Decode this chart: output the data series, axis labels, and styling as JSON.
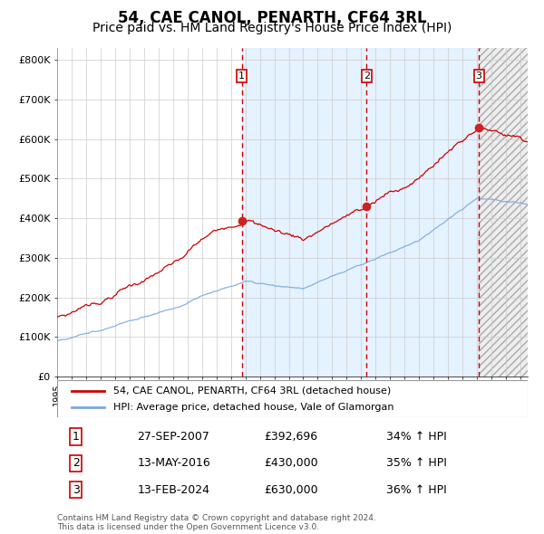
{
  "title": "54, CAE CANOL, PENARTH, CF64 3RL",
  "subtitle": "Price paid vs. HM Land Registry's House Price Index (HPI)",
  "title_fontsize": 12,
  "subtitle_fontsize": 10,
  "ylabel_ticks": [
    "£0",
    "£100K",
    "£200K",
    "£300K",
    "£400K",
    "£500K",
    "£600K",
    "£700K",
    "£800K"
  ],
  "ytick_vals": [
    0,
    100000,
    200000,
    300000,
    400000,
    500000,
    600000,
    700000,
    800000
  ],
  "ylim": [
    0,
    830000
  ],
  "xlim_start": 1995.0,
  "xlim_end": 2027.5,
  "red_line_color": "#cc0000",
  "blue_line_color": "#7aaadd",
  "bg_shaded_color": "#ddeeff",
  "vline_color": "#cc0000",
  "grid_color": "#cccccc",
  "transactions": [
    {
      "label": "1",
      "date_x": 2007.75,
      "price": 392696,
      "pct": "34%",
      "date_str": "27-SEP-2007"
    },
    {
      "label": "2",
      "date_x": 2016.37,
      "price": 430000,
      "pct": "35%",
      "date_str": "13-MAY-2016"
    },
    {
      "label": "3",
      "date_x": 2024.12,
      "price": 630000,
      "pct": "36%",
      "date_str": "13-FEB-2024"
    }
  ],
  "legend_line1": "54, CAE CANOL, PENARTH, CF64 3RL (detached house)",
  "legend_line2": "HPI: Average price, detached house, Vale of Glamorgan",
  "footnote": "Contains HM Land Registry data © Crown copyright and database right 2024.\nThis data is licensed under the Open Government Licence v3.0.",
  "table_rows": [
    [
      "1",
      "27-SEP-2007",
      "£392,696",
      "34% ↑ HPI"
    ],
    [
      "2",
      "13-MAY-2016",
      "£430,000",
      "35% ↑ HPI"
    ],
    [
      "3",
      "13-FEB-2024",
      "£630,000",
      "36% ↑ HPI"
    ]
  ]
}
